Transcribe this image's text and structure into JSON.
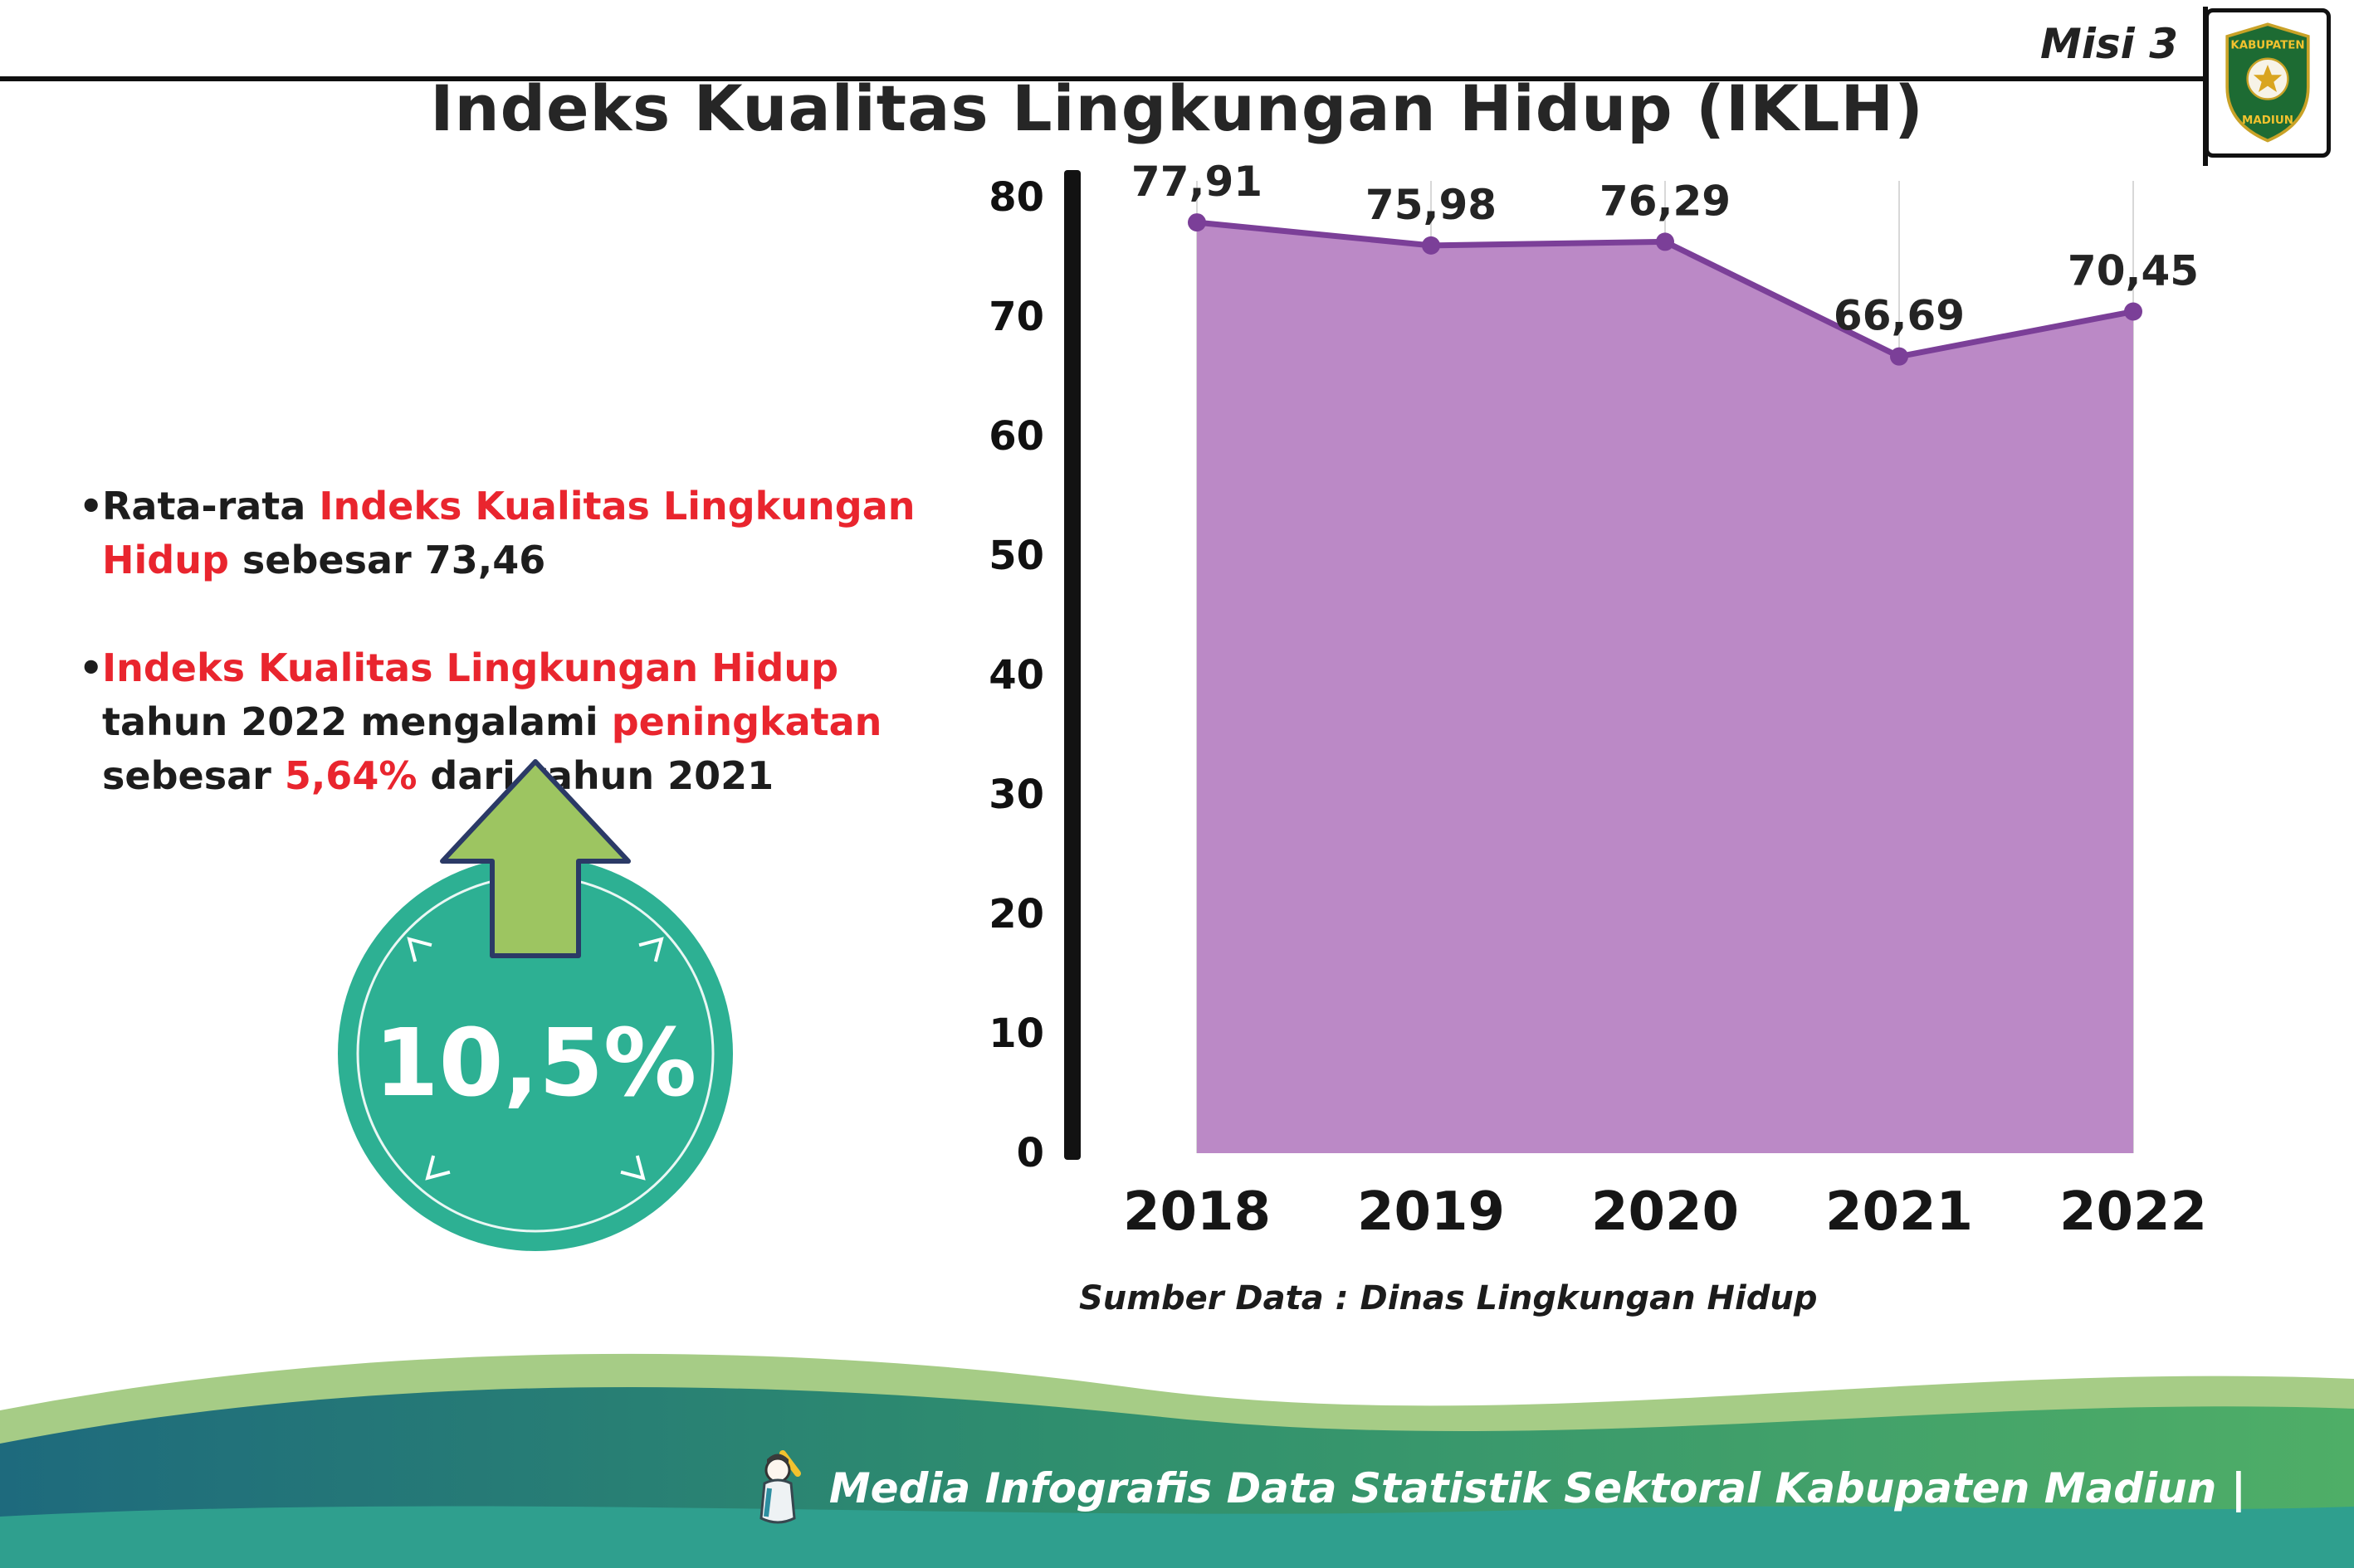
{
  "header": {
    "misi_label": "Misi 3",
    "logo": {
      "top_text": "KABUPATEN",
      "bottom_text": "MADIUN"
    }
  },
  "title": "Indeks Kualitas Lingkungan Hidup (IKLH)",
  "bullets": [
    {
      "marker": "•",
      "segments": [
        {
          "text": "Rata-rata ",
          "style": "default"
        },
        {
          "text": "Indeks Kualitas Lingkungan Hidup",
          "style": "red"
        },
        {
          "text": " sebesar 73,46",
          "style": "default"
        }
      ]
    },
    {
      "marker": "•",
      "segments": [
        {
          "text": "Indeks Kualitas Lingkungan Hidup",
          "style": "red"
        },
        {
          "text": " tahun 2022 mengalami ",
          "style": "default"
        },
        {
          "text": "peningkatan",
          "style": "red"
        },
        {
          "text": " sebesar ",
          "style": "default"
        },
        {
          "text": "5,64%",
          "style": "red"
        },
        {
          "text": " dari tahun 2021",
          "style": "default"
        }
      ]
    }
  ],
  "badge": {
    "value": "10,5%",
    "circle_color": "#2db093",
    "arrow_color": "#9dc561"
  },
  "chart_data": {
    "type": "area",
    "title": "",
    "categories": [
      "2018",
      "2019",
      "2020",
      "2021",
      "2022"
    ],
    "values": [
      77.91,
      75.98,
      76.29,
      66.69,
      70.45
    ],
    "value_labels": [
      "77,91",
      "75,98",
      "76,29",
      "66,69",
      "70,45"
    ],
    "ylim": [
      0,
      80
    ],
    "yticks": [
      0,
      10,
      20,
      30,
      40,
      50,
      60,
      70,
      80
    ],
    "grid": "vertical",
    "legend": "none",
    "colors": {
      "area": "#bb89c6",
      "line": "#7b3f98",
      "marker": "#7b3f98",
      "axis": "#121212",
      "grid": "#d8d8d8",
      "value_label": "#242424"
    },
    "source": "Sumber Data : Dinas Lingkungan Hidup"
  },
  "footer": {
    "credit": "Media Infografis Data Statistik Sektoral Kabupaten Madiun |"
  }
}
